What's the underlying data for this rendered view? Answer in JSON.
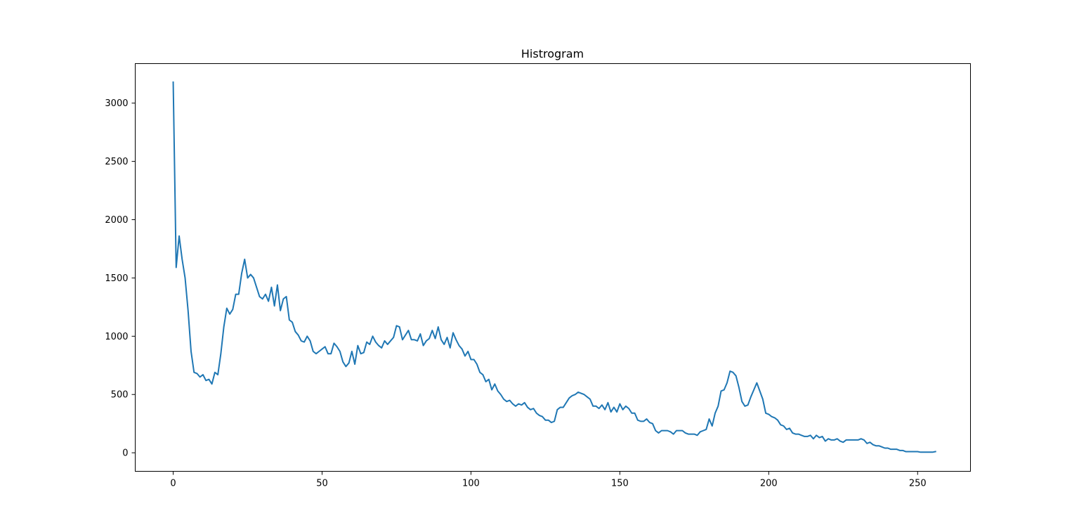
{
  "chart_data": {
    "type": "line",
    "title": "Histrogram",
    "xlabel": "",
    "ylabel": "",
    "xlim": [
      -12.75,
      267.75
    ],
    "ylim": [
      -159,
      3339
    ],
    "xticks": [
      0,
      50,
      100,
      150,
      200,
      250
    ],
    "yticks": [
      0,
      500,
      1000,
      1500,
      2000,
      2500,
      3000
    ],
    "grid": false,
    "legend": "none",
    "line_color": "#1f77b4",
    "series": [
      {
        "values": [
          3180,
          1590,
          1860,
          1660,
          1500,
          1220,
          870,
          690,
          680,
          650,
          670,
          620,
          630,
          590,
          690,
          670,
          850,
          1080,
          1240,
          1190,
          1230,
          1360,
          1360,
          1540,
          1660,
          1500,
          1530,
          1500,
          1420,
          1340,
          1320,
          1360,
          1300,
          1420,
          1260,
          1440,
          1220,
          1320,
          1340,
          1140,
          1120,
          1040,
          1010,
          960,
          950,
          1000,
          960,
          870,
          850,
          870,
          890,
          910,
          850,
          850,
          940,
          910,
          870,
          780,
          740,
          770,
          870,
          760,
          920,
          850,
          860,
          950,
          930,
          1000,
          950,
          920,
          900,
          960,
          930,
          960,
          990,
          1090,
          1080,
          970,
          1010,
          1050,
          970,
          970,
          960,
          1020,
          920,
          960,
          980,
          1050,
          980,
          1080,
          970,
          930,
          990,
          900,
          1030,
          970,
          920,
          890,
          830,
          870,
          800,
          800,
          760,
          690,
          670,
          610,
          630,
          540,
          590,
          530,
          500,
          460,
          440,
          450,
          420,
          400,
          420,
          410,
          430,
          390,
          370,
          380,
          340,
          320,
          310,
          280,
          280,
          260,
          270,
          370,
          390,
          390,
          430,
          470,
          490,
          500,
          520,
          510,
          500,
          480,
          460,
          400,
          400,
          380,
          410,
          370,
          430,
          350,
          390,
          350,
          420,
          370,
          400,
          380,
          340,
          340,
          280,
          270,
          270,
          290,
          260,
          250,
          190,
          170,
          190,
          190,
          190,
          180,
          160,
          190,
          190,
          190,
          170,
          160,
          160,
          160,
          150,
          180,
          190,
          200,
          290,
          230,
          340,
          400,
          530,
          540,
          600,
          700,
          690,
          660,
          560,
          440,
          400,
          410,
          480,
          540,
          600,
          530,
          460,
          340,
          330,
          310,
          300,
          280,
          240,
          230,
          200,
          210,
          170,
          160,
          160,
          150,
          140,
          140,
          150,
          120,
          150,
          130,
          140,
          100,
          120,
          110,
          110,
          120,
          100,
          90,
          110,
          110,
          110,
          110,
          110,
          120,
          110,
          80,
          90,
          70,
          60,
          60,
          50,
          40,
          40,
          30,
          30,
          30,
          20,
          20,
          10,
          10,
          10,
          10,
          10,
          5,
          5,
          5,
          5,
          5,
          10
        ]
      }
    ]
  }
}
